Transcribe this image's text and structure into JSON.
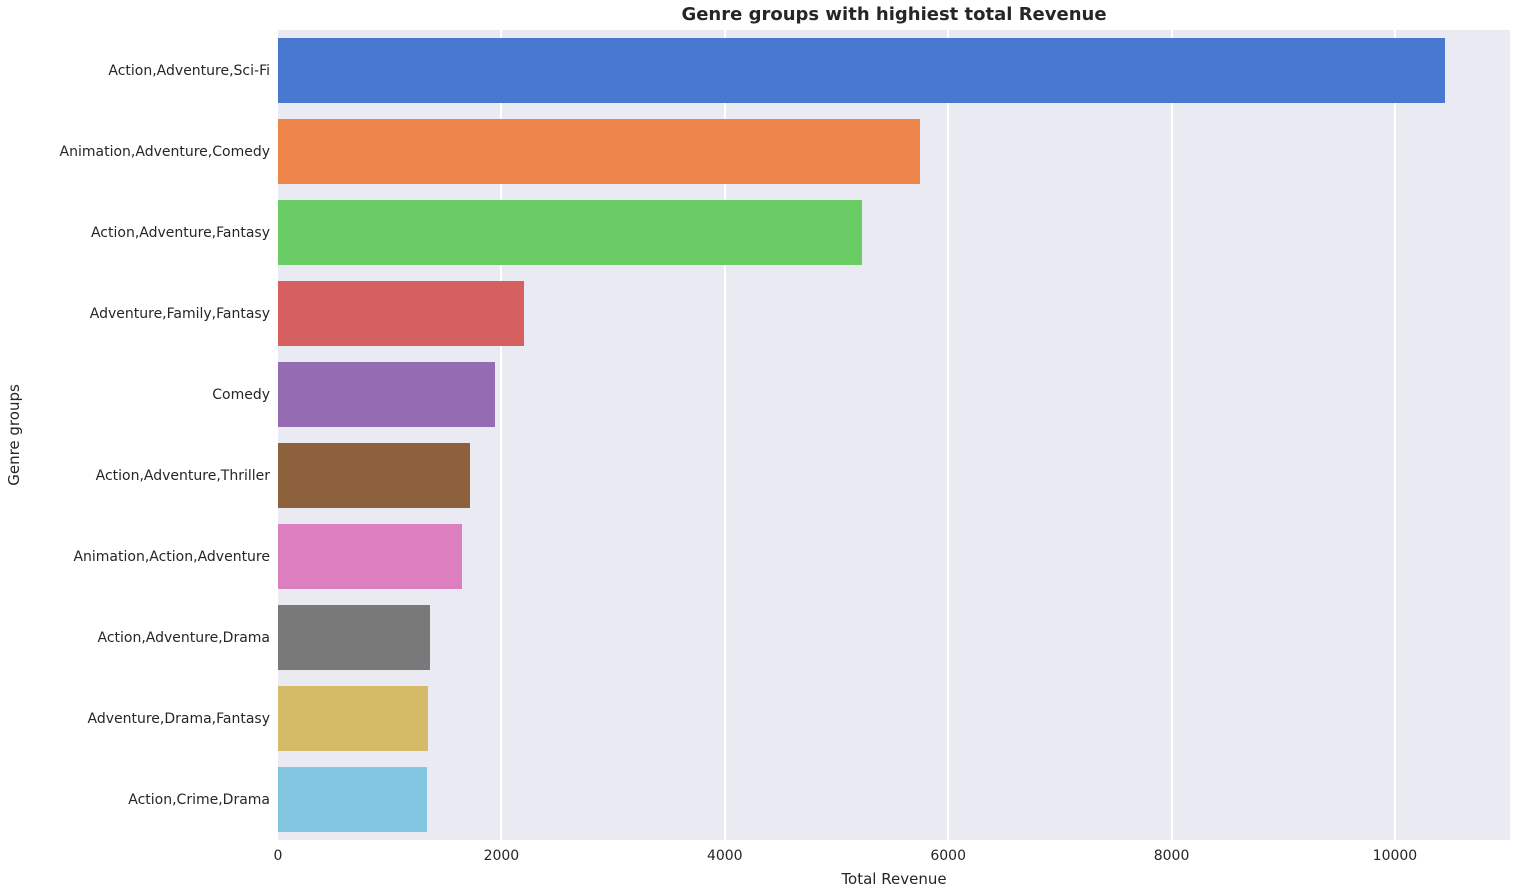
{
  "chart_data": {
    "type": "bar",
    "orientation": "horizontal",
    "title": "Genre groups with highiest total Revenue",
    "xlabel": "Total Revenue",
    "ylabel": "Genre groups",
    "categories": [
      "Action,Adventure,Sci-Fi",
      "Animation,Adventure,Comedy",
      "Action,Adventure,Fantasy",
      "Adventure,Family,Fantasy",
      "Comedy",
      "Action,Adventure,Thriller",
      "Animation,Action,Adventure",
      "Action,Adventure,Drama",
      "Adventure,Drama,Fantasy",
      "Action,Crime,Drama"
    ],
    "values": [
      10450,
      5750,
      5230,
      2200,
      1940,
      1720,
      1650,
      1360,
      1340,
      1330
    ],
    "bar_colors": [
      "#4878D0",
      "#EE854A",
      "#6ACC64",
      "#D65F5F",
      "#956CB4",
      "#8C613C",
      "#DC7EC0",
      "#797979",
      "#D5BB67",
      "#82C6E2"
    ],
    "xlim": [
      0,
      11030
    ],
    "x_ticks": [
      0,
      2000,
      4000,
      6000,
      8000,
      10000
    ],
    "grid": true,
    "legend": "none",
    "plot_background": "#eaeaf2",
    "figure_background": "#ffffff"
  }
}
